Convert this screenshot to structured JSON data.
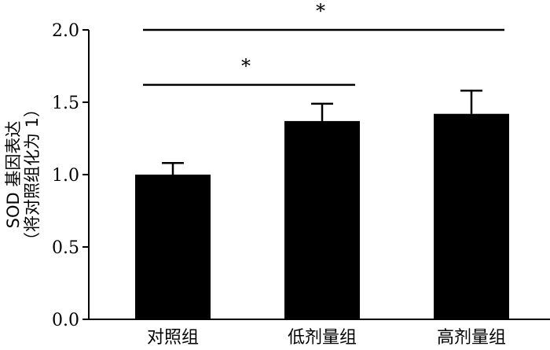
{
  "chart_data": {
    "type": "bar",
    "categories": [
      "对照组",
      "低剂量组",
      "高剂量组"
    ],
    "values": [
      1.0,
      1.37,
      1.42
    ],
    "errors": [
      0.08,
      0.12,
      0.16
    ],
    "ylim": [
      0.0,
      2.0
    ],
    "yticks": [
      0.0,
      0.5,
      1.0,
      1.5,
      2.0
    ],
    "ytick_labels": [
      "0.0",
      "0.5",
      "1.0",
      "1.5",
      "2.0"
    ],
    "ylabel": "SOD 基因表达",
    "ylabel_line2": "（将对照组化为 1）",
    "xlabel": "",
    "grid": false,
    "significance": [
      {
        "from": "对照组",
        "to": "低剂量组",
        "label": "*",
        "y": 1.62
      },
      {
        "from": "对照组",
        "to": "高剂量组",
        "label": "*",
        "y": 2.0
      }
    ],
    "bar_color": "#000000"
  }
}
